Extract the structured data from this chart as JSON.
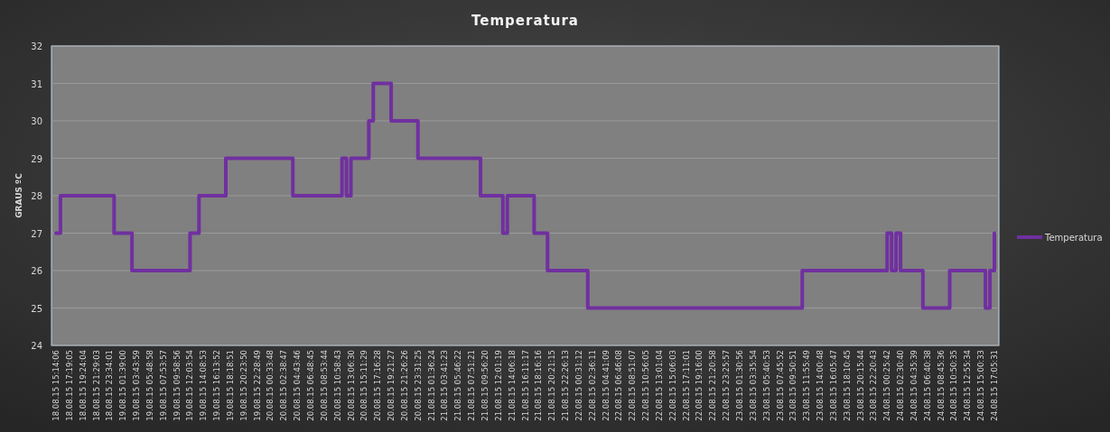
{
  "chart_data": {
    "type": "step",
    "title": "Temperatura",
    "ylabel": "GRAUS ºC",
    "categories": [
      "18.08.15 15:14:06",
      null,
      null,
      "18.08.15 17:19:05",
      null,
      null,
      "18.08.15 19:24:04",
      null,
      null,
      "18.08.15 21:29:03",
      null,
      null,
      "18.08.15 23:34:01",
      null,
      null,
      "19.08.15 01:39:00",
      null,
      null,
      "19.08.15 03:43:59",
      null,
      null,
      "19.08.15 05:48:58",
      null,
      null,
      "19.08.15 07:53:57",
      null,
      null,
      "19.08.15 09:58:56",
      null,
      null,
      "19.08.15 12:03:54",
      null,
      null,
      "19.08.15 14:08:53",
      null,
      null,
      "19.08.15 16:13:52",
      null,
      null,
      "19.08.15 18:18:51",
      null,
      null,
      "19.08.15 20:23:50",
      null,
      null,
      "19.08.15 22:28:49",
      null,
      null,
      "20.08.15 00:33:48",
      null,
      null,
      "20.08.15 02:38:47",
      null,
      null,
      "20.08.15 04:43:46",
      null,
      null,
      "20.08.15 06:48:45",
      null,
      null,
      "20.08.15 08:53:44",
      null,
      null,
      "20.08.15 10:58:43",
      null,
      null,
      "20.08.15 13:06:30",
      null,
      null,
      "20.08.15 15:11:29",
      null,
      null,
      "20.08.15 17:16:28",
      null,
      null,
      "20.08.15 19:21:27",
      null,
      null,
      "20.08.15 21:26:26",
      null,
      null,
      "20.08.15 23:31:25",
      null,
      null,
      "21.08.15 01:36:24",
      null,
      null,
      "21.08.15 03:41:23",
      null,
      null,
      "21.08.15 05:46:22",
      null,
      null,
      "21.08.15 07:51:21",
      null,
      null,
      "21.08.15 09:56:20",
      null,
      null,
      "21.08.15 12:01:19",
      null,
      null,
      "21.08.15 14:06:18",
      null,
      null,
      "21.08.15 16:11:17",
      null,
      null,
      "21.08.15 18:16:16",
      null,
      null,
      "21.08.15 20:21:15",
      null,
      null,
      "21.08.15 22:26:13",
      null,
      null,
      "22.08.15 00:31:12",
      null,
      null,
      "22.08.15 02:36:11",
      null,
      null,
      "22.08.15 04:41:09",
      null,
      null,
      "22.08.15 06:46:08",
      null,
      null,
      "22.08.15 08:51:07",
      null,
      null,
      "22.08.15 10:56:05",
      null,
      null,
      "22.08.15 13:01:04",
      null,
      null,
      "22.08.15 15:06:03",
      null,
      null,
      "22.08.15 17:11:01",
      null,
      null,
      "22.08.15 19:16:00",
      null,
      null,
      "22.08.15 21:20:58",
      null,
      null,
      "22.08.15 23:25:57",
      null,
      null,
      "23.08.15 01:30:56",
      null,
      null,
      "23.08.15 03:35:54",
      null,
      null,
      "23.08.15 05:40:53",
      null,
      null,
      "23.08.15 07:45:52",
      null,
      null,
      "23.08.15 09:50:51",
      null,
      null,
      "23.08.15 11:55:49",
      null,
      null,
      "23.08.15 14:00:48",
      null,
      null,
      "23.08.15 16:05:47",
      null,
      null,
      "23.08.15 18:10:45",
      null,
      null,
      "23.08.15 20:15:44",
      null,
      null,
      "23.08.15 22:20:43",
      null,
      null,
      "24.08.15 00:25:42",
      null,
      null,
      "24.08.15 02:30:40",
      null,
      null,
      "24.08.15 04:35:39",
      null,
      null,
      "24.08.15 06:40:38",
      null,
      null,
      "24.08.15 08:45:36",
      null,
      null,
      "24.08.15 10:50:35",
      null,
      null,
      "24.08.15 12:55:34",
      null,
      null,
      "24.08.15 15:00:33",
      null,
      null,
      "24.08.15 17:05:31"
    ],
    "series": [
      {
        "name": "Temperatura",
        "color": "#7030a0",
        "values": [
          27,
          28,
          28,
          28,
          28,
          28,
          28,
          28,
          28,
          28,
          28,
          28,
          28,
          27,
          27,
          27,
          27,
          26,
          26,
          26,
          26,
          26,
          26,
          26,
          26,
          26,
          26,
          26,
          26,
          26,
          27,
          27,
          28,
          28,
          28,
          28,
          28,
          28,
          29,
          29,
          29,
          29,
          29,
          29,
          29,
          29,
          29,
          29,
          29,
          29,
          29,
          29,
          29,
          28,
          28,
          28,
          28,
          28,
          28,
          28,
          28,
          28,
          28,
          28,
          29,
          28,
          29,
          29,
          29,
          29,
          30,
          31,
          31,
          31,
          31,
          30,
          30,
          30,
          30,
          30,
          30,
          29,
          29,
          29,
          29,
          29,
          29,
          29,
          29,
          29,
          29,
          29,
          29,
          29,
          29,
          28,
          28,
          28,
          28,
          28,
          27,
          28,
          28,
          28,
          28,
          28,
          28,
          27,
          27,
          27,
          26,
          26,
          26,
          26,
          26,
          26,
          26,
          26,
          26,
          25,
          25,
          25,
          25,
          25,
          25,
          25,
          25,
          25,
          25,
          25,
          25,
          25,
          25,
          25,
          25,
          25,
          25,
          25,
          25,
          25,
          25,
          25,
          25,
          25,
          25,
          25,
          25,
          25,
          25,
          25,
          25,
          25,
          25,
          25,
          25,
          25,
          25,
          25,
          25,
          25,
          25,
          25,
          25,
          25,
          25,
          25,
          25,
          26,
          26,
          26,
          26,
          26,
          26,
          26,
          26,
          26,
          26,
          26,
          26,
          26,
          26,
          26,
          26,
          26,
          26,
          26,
          27,
          26,
          27,
          26,
          26,
          26,
          26,
          26,
          25,
          25,
          25,
          25,
          25,
          25,
          26,
          26,
          26,
          26,
          26,
          26,
          26,
          26,
          25,
          26,
          27
        ]
      }
    ],
    "ylim": [
      24,
      32
    ],
    "yticks": [
      24,
      25,
      26,
      27,
      28,
      29,
      30,
      31,
      32
    ],
    "grid": "y",
    "legend": "right"
  }
}
